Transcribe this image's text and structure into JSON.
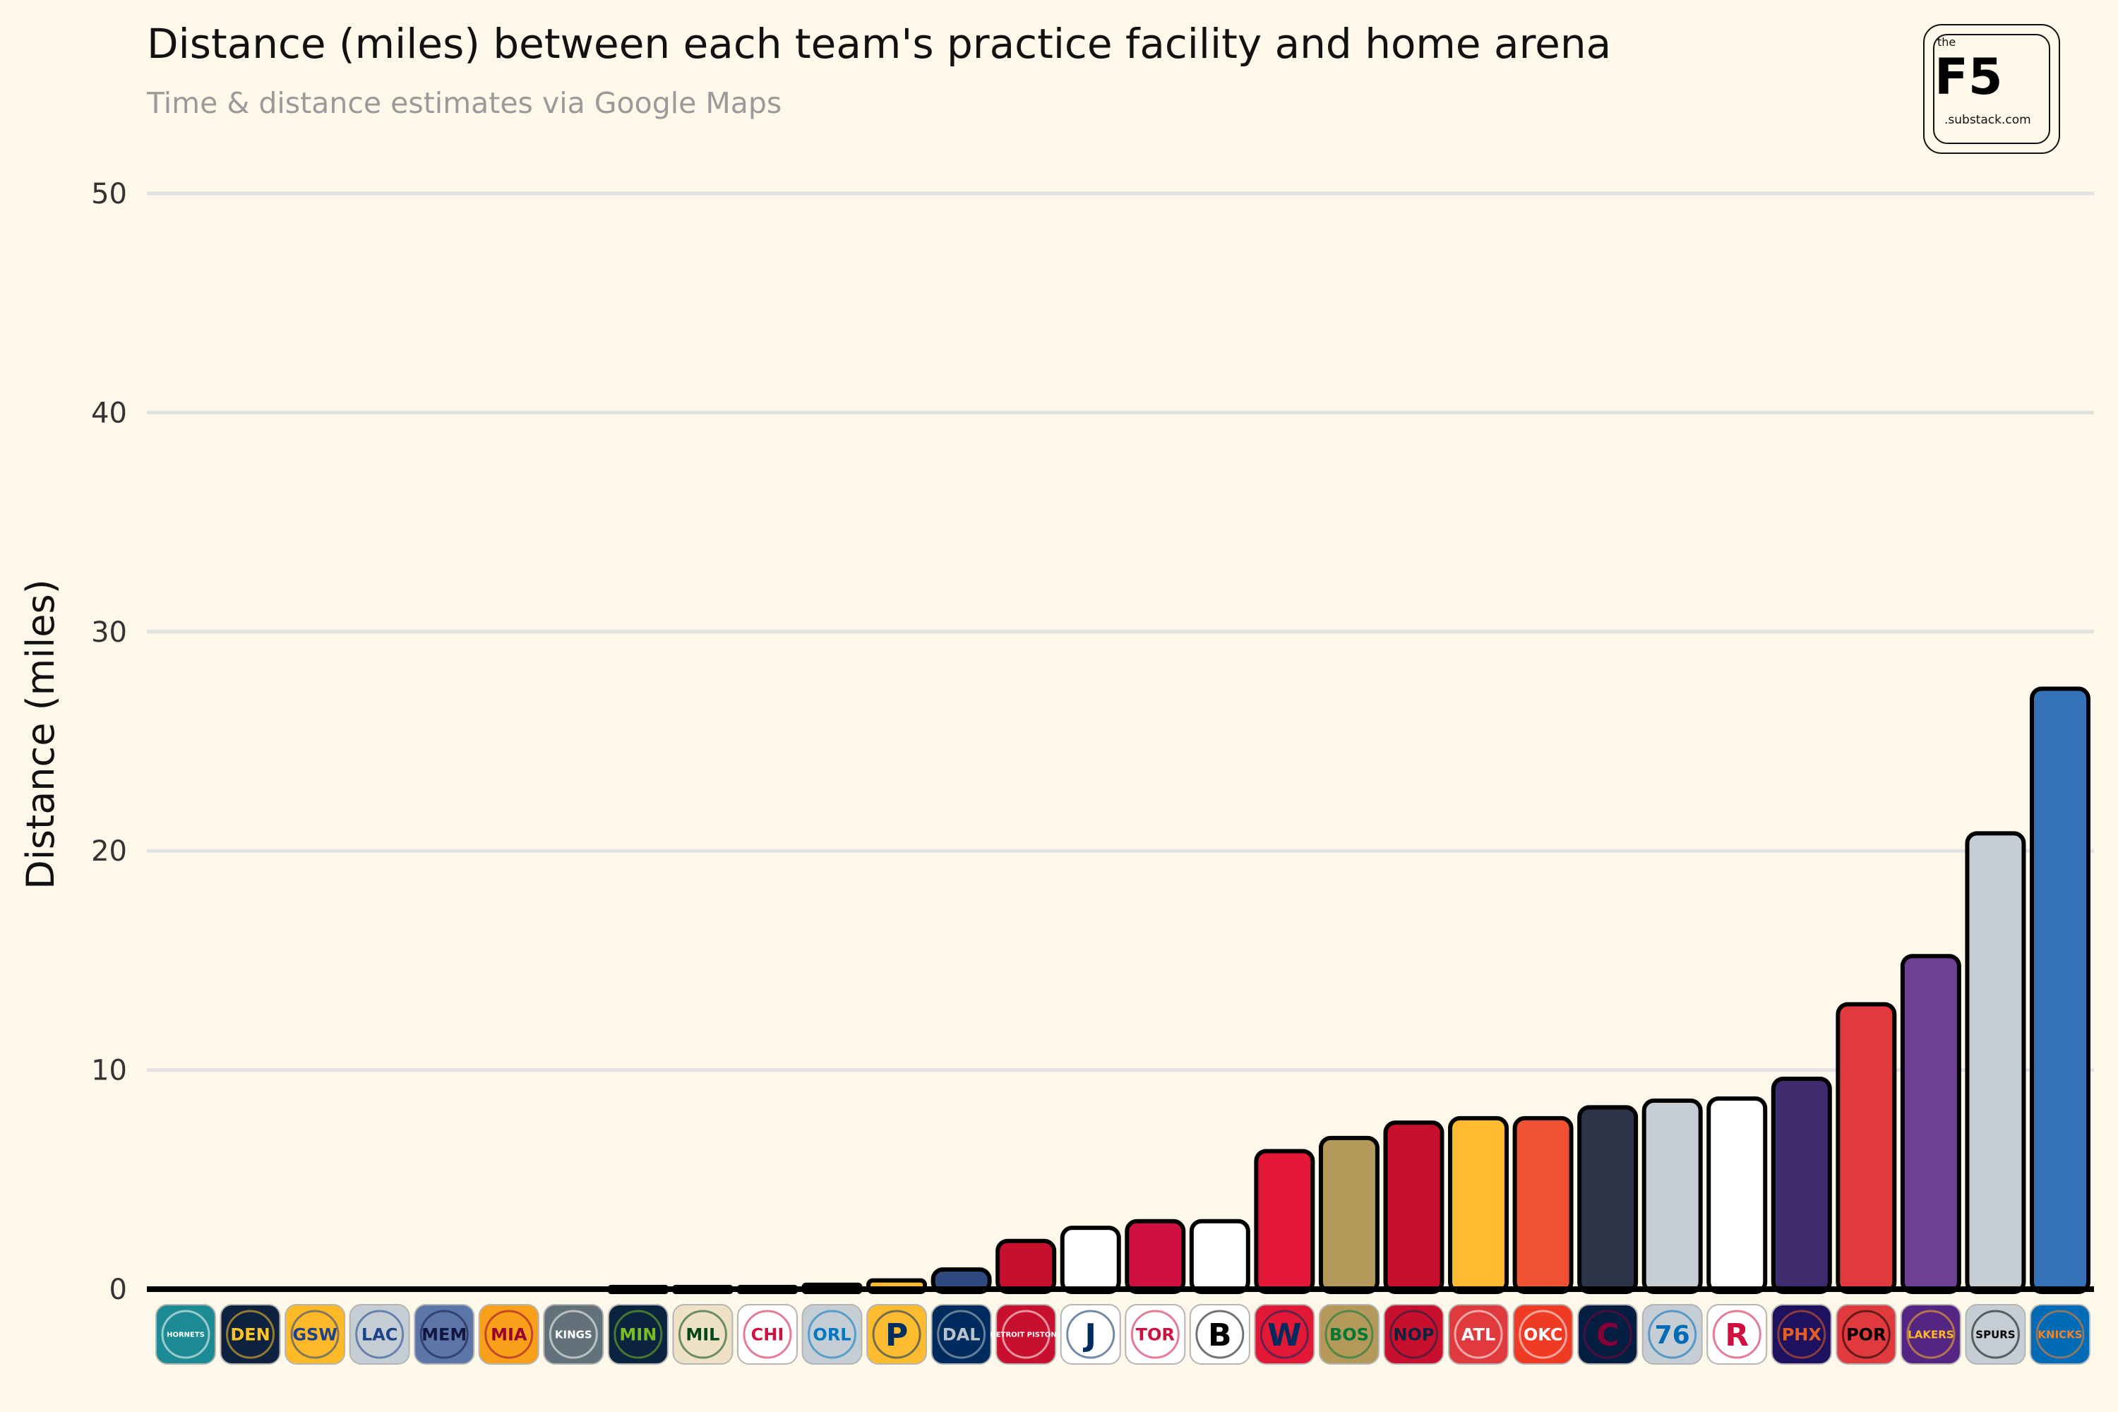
{
  "title": "Distance (miles) between each team's practice facility and home arena",
  "subtitle": "Time & distance estimates via Google Maps",
  "logo": {
    "small": "the",
    "big": "F5",
    "domain": ".substack.com"
  },
  "chart_data": {
    "type": "bar",
    "title": "Distance (miles) between each team's practice facility and home arena",
    "subtitle": "Time & distance estimates via Google Maps",
    "xlabel": "",
    "ylabel": "Distance (miles)",
    "ylim": [
      0,
      50
    ],
    "yticks": [
      0,
      10,
      20,
      30,
      40,
      50
    ],
    "grid": true,
    "categories": [
      "Hornets",
      "Nuggets",
      "Warriors",
      "Clippers",
      "Grizzlies",
      "Heat",
      "Kings",
      "Timberwolves",
      "Bucks",
      "Bulls",
      "Magic",
      "Pacers",
      "Mavericks",
      "Pistons",
      "Jazz",
      "Raptors",
      "Nets",
      "Wizards",
      "Celtics",
      "Pelicans",
      "Hawks",
      "Thunder",
      "Cavaliers",
      "76ers",
      "Rockets",
      "Suns",
      "Trail Blazers",
      "Lakers",
      "Spurs",
      "Knicks"
    ],
    "values": [
      0,
      0,
      0,
      0,
      0,
      0,
      0,
      0.1,
      0.1,
      0.1,
      0.2,
      0.4,
      0.9,
      2.2,
      2.8,
      3.1,
      3.1,
      6.3,
      6.9,
      7.6,
      7.8,
      7.8,
      8.3,
      8.6,
      8.7,
      9.6,
      13.0,
      15.2,
      20.8,
      27.4
    ],
    "colors": [
      "#1d8b94",
      "#0e2240",
      "#fdb927",
      "#c8102e",
      "#5d76a9",
      "#98002e",
      "#5a2d81",
      "#236192",
      "#eee1c6",
      "#ce1141",
      "#0077c0",
      "#fdbb30",
      "#2f4a7e",
      "#c8102e",
      "#ffffff",
      "#ce1141",
      "#ffffff",
      "#e31837",
      "#b5995a",
      "#c8102e",
      "#fdbb30",
      "#f05133",
      "#2b3547",
      "#c4ced4",
      "#ffffff",
      "#3f2b6e",
      "#e03a3e",
      "#6f3f95",
      "#c4ced4",
      "#3672b8"
    ],
    "team_icons": [
      {
        "name": "hornets-logo",
        "bg": "#1d8b94",
        "fg": "#ffffff",
        "text": "HORNETS"
      },
      {
        "name": "nuggets-logo",
        "bg": "#0e2240",
        "fg": "#fec524",
        "text": "DEN"
      },
      {
        "name": "warriors-logo",
        "bg": "#fdb927",
        "fg": "#1d428a",
        "text": "GSW"
      },
      {
        "name": "clippers-logo",
        "bg": "#c4ced4",
        "fg": "#1d428a",
        "text": "LAC"
      },
      {
        "name": "grizzlies-logo",
        "bg": "#5d76a9",
        "fg": "#12173f",
        "text": "MEM"
      },
      {
        "name": "heat-logo",
        "bg": "#f9a01b",
        "fg": "#98002e",
        "text": "MIA"
      },
      {
        "name": "kings-logo",
        "bg": "#63727a",
        "fg": "#ffffff",
        "text": "KINGS"
      },
      {
        "name": "timberwolves-logo",
        "bg": "#0c2340",
        "fg": "#78be20",
        "text": "MIN"
      },
      {
        "name": "bucks-logo",
        "bg": "#eee1c6",
        "fg": "#00471b",
        "text": "MIL"
      },
      {
        "name": "bulls-logo",
        "bg": "#ffffff",
        "fg": "#ce1141",
        "text": "CHI"
      },
      {
        "name": "magic-logo",
        "bg": "#c4ced4",
        "fg": "#0077c0",
        "text": "ORL"
      },
      {
        "name": "pacers-logo",
        "bg": "#fdbb30",
        "fg": "#002d62",
        "text": "P"
      },
      {
        "name": "mavericks-logo",
        "bg": "#002b5e",
        "fg": "#b8c4ca",
        "text": "DAL"
      },
      {
        "name": "pistons-logo",
        "bg": "#c8102e",
        "fg": "#ffffff",
        "text": "DETROIT PISTONS"
      },
      {
        "name": "jazz-logo",
        "bg": "#ffffff",
        "fg": "#002b5c",
        "text": "J"
      },
      {
        "name": "raptors-logo",
        "bg": "#ffffff",
        "fg": "#ce1141",
        "text": "TOR"
      },
      {
        "name": "nets-logo",
        "bg": "#ffffff",
        "fg": "#000000",
        "text": "B"
      },
      {
        "name": "wizards-logo",
        "bg": "#e31837",
        "fg": "#002b5c",
        "text": "W"
      },
      {
        "name": "celtics-logo",
        "bg": "#b5995a",
        "fg": "#007a33",
        "text": "BOS"
      },
      {
        "name": "pelicans-logo",
        "bg": "#c8102e",
        "fg": "#0c2340",
        "text": "NOP"
      },
      {
        "name": "hawks-logo",
        "bg": "#e03a3e",
        "fg": "#ffffff",
        "text": "ATL"
      },
      {
        "name": "thunder-logo",
        "bg": "#ef3b24",
        "fg": "#ffffff",
        "text": "OKC"
      },
      {
        "name": "cavaliers-logo",
        "bg": "#041e42",
        "fg": "#860038",
        "text": "C"
      },
      {
        "name": "sixers-logo",
        "bg": "#c4ced4",
        "fg": "#006bb6",
        "text": "76"
      },
      {
        "name": "rockets-logo",
        "bg": "#ffffff",
        "fg": "#ce1141",
        "text": "R"
      },
      {
        "name": "suns-logo",
        "bg": "#1d1160",
        "fg": "#e56020",
        "text": "PHX"
      },
      {
        "name": "trailblazers-logo",
        "bg": "#e03a3e",
        "fg": "#000000",
        "text": "POR"
      },
      {
        "name": "lakers-logo",
        "bg": "#552583",
        "fg": "#fdb927",
        "text": "LAKERS"
      },
      {
        "name": "spurs-logo",
        "bg": "#c4ced4",
        "fg": "#000000",
        "text": "SPURS"
      },
      {
        "name": "knicks-logo",
        "bg": "#006bb6",
        "fg": "#f58426",
        "text": "KNICKS"
      }
    ]
  }
}
